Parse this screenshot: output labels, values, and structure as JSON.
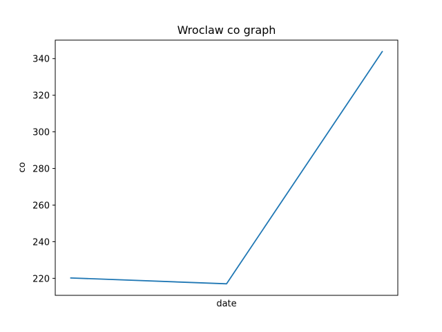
{
  "chart_data": {
    "type": "line",
    "title": "Wroclaw co graph",
    "xlabel": "date",
    "ylabel": "co",
    "x": [
      0,
      1,
      2
    ],
    "series": [
      {
        "values": [
          220.2,
          217.0,
          343.8
        ],
        "color": "#1f77b4"
      }
    ],
    "ylim": [
      210.7,
      350.1
    ],
    "yticks": [
      220,
      240,
      260,
      280,
      300,
      320,
      340
    ],
    "grid": false,
    "legend": "none"
  }
}
